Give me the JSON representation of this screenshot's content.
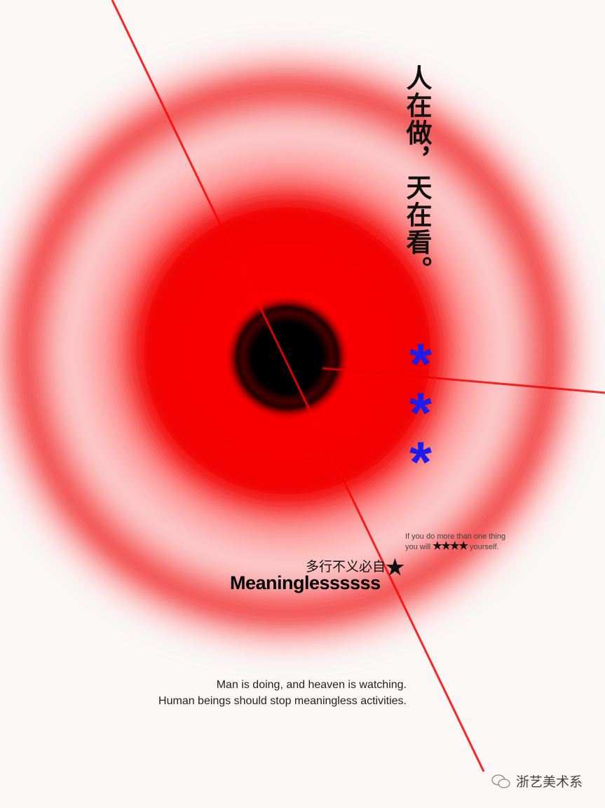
{
  "poster": {
    "vertical_title": "人在做，天在看。",
    "stars": [
      "*",
      "*",
      "*"
    ],
    "note_line1": "If you do more than one thing",
    "note_line2_pre": "you will",
    "note_censor": "★★★★",
    "note_line2_post": "yourself.",
    "chinese_idiom": "多行不义必自",
    "idiom_star": "★",
    "headline": "Meaninglessssss",
    "tagline_1": "Man is doing, and heaven is watching.",
    "tagline_2": "Human beings should stop meaningless activities.",
    "watermark": "浙艺美术系",
    "colors": {
      "red": "#f50000",
      "blue": "#1c1cf0",
      "black": "#000000"
    }
  }
}
